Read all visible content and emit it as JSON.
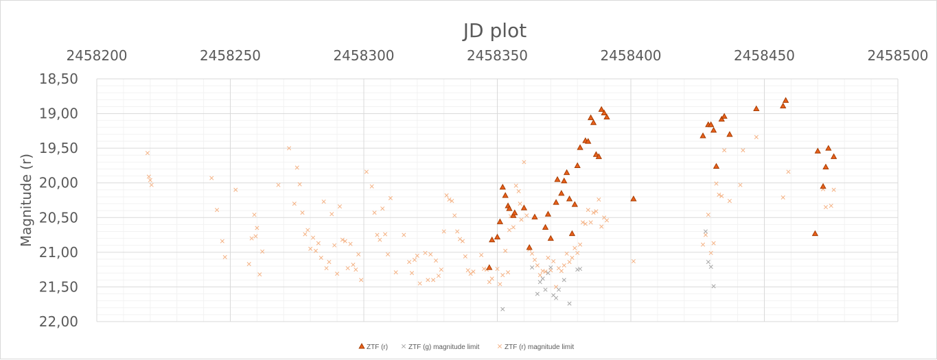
{
  "chart_data": {
    "type": "scatter",
    "title": "JD plot",
    "xlabel": "",
    "ylabel": "Magnitude (r)",
    "xlim": [
      2458200,
      2458500
    ],
    "x_ticks": [
      "2458200",
      "2458250",
      "2458300",
      "2458350",
      "2458400",
      "2458450",
      "2458500"
    ],
    "x_axis_position": "top",
    "ylim": [
      18.5,
      22.0
    ],
    "y_inverted": true,
    "y_ticks": [
      "18,50",
      "19,00",
      "19,50",
      "20,00",
      "20,50",
      "21,00",
      "21,50",
      "22,00"
    ],
    "grid": true,
    "legend_position": "bottom",
    "colors": {
      "ztf_r": "#e8601c",
      "ztf_r_edge": "#a63c00",
      "g_limit": "#a6a6a6",
      "r_limit": "#f4b183"
    },
    "series": [
      {
        "name": "ZTF (r)",
        "marker": "triangle",
        "points": [
          [
            2458347,
            21.22
          ],
          [
            2458348,
            20.82
          ],
          [
            2458350,
            20.78
          ],
          [
            2458351,
            20.56
          ],
          [
            2458352,
            20.06
          ],
          [
            2458353,
            20.18
          ],
          [
            2458354,
            20.33
          ],
          [
            2458354.5,
            20.37
          ],
          [
            2458356,
            20.47
          ],
          [
            2458356.5,
            20.43
          ],
          [
            2458360,
            20.36
          ],
          [
            2458362,
            20.93
          ],
          [
            2458364,
            20.49
          ],
          [
            2458368,
            20.64
          ],
          [
            2458369,
            20.45
          ],
          [
            2458370,
            20.8
          ],
          [
            2458372,
            20.28
          ],
          [
            2458372.5,
            19.95
          ],
          [
            2458374,
            20.15
          ],
          [
            2458375,
            19.97
          ],
          [
            2458376,
            19.85
          ],
          [
            2458377,
            20.23
          ],
          [
            2458378,
            20.73
          ],
          [
            2458379,
            20.31
          ],
          [
            2458380,
            19.75
          ],
          [
            2458381,
            19.49
          ],
          [
            2458383,
            19.39
          ],
          [
            2458384,
            19.4
          ],
          [
            2458385,
            19.06
          ],
          [
            2458386,
            19.13
          ],
          [
            2458387,
            19.59
          ],
          [
            2458388,
            19.62
          ],
          [
            2458389,
            18.94
          ],
          [
            2458390,
            18.99
          ],
          [
            2458391,
            19.05
          ],
          [
            2458401,
            20.23
          ],
          [
            2458427,
            19.32
          ],
          [
            2458429,
            19.16
          ],
          [
            2458430,
            19.16
          ],
          [
            2458431,
            19.24
          ],
          [
            2458432,
            19.76
          ],
          [
            2458434,
            19.08
          ],
          [
            2458435,
            19.04
          ],
          [
            2458437,
            19.3
          ],
          [
            2458447,
            18.93
          ],
          [
            2458457,
            18.89
          ],
          [
            2458458,
            18.81
          ],
          [
            2458469,
            20.73
          ],
          [
            2458470,
            19.54
          ],
          [
            2458472,
            20.05
          ],
          [
            2458473,
            19.77
          ],
          [
            2458474,
            19.5
          ],
          [
            2458476,
            19.62
          ]
        ]
      },
      {
        "name": "ZTF (g) magnitude limit",
        "marker": "x",
        "points": [
          [
            2458352,
            21.82
          ],
          [
            2458363,
            21.22
          ],
          [
            2458365,
            21.6
          ],
          [
            2458366,
            21.43
          ],
          [
            2458367,
            21.38
          ],
          [
            2458368,
            21.54
          ],
          [
            2458369,
            21.3
          ],
          [
            2458370,
            21.22
          ],
          [
            2458371,
            21.62
          ],
          [
            2458372,
            21.66
          ],
          [
            2458373,
            21.54
          ],
          [
            2458375,
            21.4
          ],
          [
            2458377,
            21.74
          ],
          [
            2458380,
            21.25
          ],
          [
            2458381,
            21.24
          ],
          [
            2458428,
            20.7
          ],
          [
            2458429,
            21.14
          ],
          [
            2458430,
            21.21
          ],
          [
            2458431,
            21.49
          ]
        ]
      },
      {
        "name": "ZTF (r) magnitude limit",
        "marker": "x",
        "points": [
          [
            2458219,
            19.57
          ],
          [
            2458219.5,
            19.91
          ],
          [
            2458220,
            19.96
          ],
          [
            2458220.5,
            20.03
          ],
          [
            2458243,
            19.93
          ],
          [
            2458245,
            20.39
          ],
          [
            2458247,
            20.84
          ],
          [
            2458248,
            21.07
          ],
          [
            2458252,
            20.1
          ],
          [
            2458257,
            21.17
          ],
          [
            2458258,
            20.8
          ],
          [
            2458259,
            20.46
          ],
          [
            2458259.5,
            20.77
          ],
          [
            2458260,
            20.65
          ],
          [
            2458261,
            21.32
          ],
          [
            2458262,
            20.99
          ],
          [
            2458268,
            20.03
          ],
          [
            2458272,
            19.5
          ],
          [
            2458274,
            20.3
          ],
          [
            2458275,
            19.78
          ],
          [
            2458276,
            20.02
          ],
          [
            2458277,
            20.43
          ],
          [
            2458278,
            20.74
          ],
          [
            2458279,
            20.68
          ],
          [
            2458280,
            20.95
          ],
          [
            2458281,
            20.79
          ],
          [
            2458282,
            20.98
          ],
          [
            2458283,
            20.87
          ],
          [
            2458284,
            21.08
          ],
          [
            2458285,
            20.27
          ],
          [
            2458286,
            21.23
          ],
          [
            2458287,
            21.14
          ],
          [
            2458288,
            20.45
          ],
          [
            2458289,
            20.9
          ],
          [
            2458290,
            21.31
          ],
          [
            2458291,
            20.34
          ],
          [
            2458292,
            20.82
          ],
          [
            2458293,
            20.84
          ],
          [
            2458294,
            21.23
          ],
          [
            2458295,
            20.88
          ],
          [
            2458296,
            21.18
          ],
          [
            2458297,
            21.25
          ],
          [
            2458298,
            21.03
          ],
          [
            2458299,
            21.4
          ],
          [
            2458301,
            19.84
          ],
          [
            2458303,
            20.05
          ],
          [
            2458304,
            20.43
          ],
          [
            2458305,
            20.75
          ],
          [
            2458306,
            20.82
          ],
          [
            2458307,
            20.37
          ],
          [
            2458308,
            20.74
          ],
          [
            2458309,
            21.03
          ],
          [
            2458310,
            20.22
          ],
          [
            2458312,
            21.29
          ],
          [
            2458315,
            20.75
          ],
          [
            2458317,
            21.14
          ],
          [
            2458318,
            21.3
          ],
          [
            2458319,
            21.11
          ],
          [
            2458320,
            21.05
          ],
          [
            2458321,
            21.45
          ],
          [
            2458323,
            21.01
          ],
          [
            2458324,
            21.4
          ],
          [
            2458325,
            21.03
          ],
          [
            2458326,
            21.4
          ],
          [
            2458327,
            21.12
          ],
          [
            2458328,
            21.34
          ],
          [
            2458329,
            21.25
          ],
          [
            2458330,
            20.7
          ],
          [
            2458331,
            20.18
          ],
          [
            2458332,
            20.24
          ],
          [
            2458333,
            20.26
          ],
          [
            2458334,
            20.47
          ],
          [
            2458335,
            20.7
          ],
          [
            2458336,
            20.81
          ],
          [
            2458337,
            20.84
          ],
          [
            2458338,
            21.06
          ],
          [
            2458339,
            21.26
          ],
          [
            2458340,
            21.31
          ],
          [
            2458341,
            21.28
          ],
          [
            2458344,
            21.04
          ],
          [
            2458345,
            21.24
          ],
          [
            2458346,
            21.25
          ],
          [
            2458347,
            21.43
          ],
          [
            2458348,
            21.38
          ],
          [
            2458350,
            21.24
          ],
          [
            2458351,
            21.46
          ],
          [
            2458352,
            21.33
          ],
          [
            2458353,
            20.98
          ],
          [
            2458354,
            21.29
          ],
          [
            2458354.5,
            20.68
          ],
          [
            2458355,
            20.48
          ],
          [
            2458356,
            20.64
          ],
          [
            2458357,
            20.04
          ],
          [
            2458358,
            20.12
          ],
          [
            2458358.5,
            20.3
          ],
          [
            2458359,
            20.53
          ],
          [
            2458360,
            19.7
          ],
          [
            2458361,
            20.47
          ],
          [
            2458362,
            20.96
          ],
          [
            2458363,
            21.02
          ],
          [
            2458364,
            21.11
          ],
          [
            2458365,
            21.19
          ],
          [
            2458366,
            21.33
          ],
          [
            2458367,
            21.27
          ],
          [
            2458368,
            21.28
          ],
          [
            2458369,
            21.08
          ],
          [
            2458370,
            21.26
          ],
          [
            2458371,
            21.13
          ],
          [
            2458372,
            21.5
          ],
          [
            2458373,
            21.23
          ],
          [
            2458374,
            21.27
          ],
          [
            2458375,
            21.19
          ],
          [
            2458376,
            21.02
          ],
          [
            2458377,
            21.14
          ],
          [
            2458378,
            21.08
          ],
          [
            2458379,
            20.94
          ],
          [
            2458380,
            21.01
          ],
          [
            2458381,
            20.89
          ],
          [
            2458382,
            20.57
          ],
          [
            2458383,
            20.59
          ],
          [
            2458384,
            20.39
          ],
          [
            2458385,
            20.57
          ],
          [
            2458386,
            20.43
          ],
          [
            2458387,
            20.41
          ],
          [
            2458388,
            20.24
          ],
          [
            2458389,
            20.63
          ],
          [
            2458390,
            20.5
          ],
          [
            2458391,
            20.54
          ],
          [
            2458401,
            21.13
          ],
          [
            2458427,
            20.89
          ],
          [
            2458428,
            20.75
          ],
          [
            2458429,
            20.46
          ],
          [
            2458430,
            21.01
          ],
          [
            2458431,
            20.87
          ],
          [
            2458432,
            20.01
          ],
          [
            2458433,
            20.17
          ],
          [
            2458434,
            20.19
          ],
          [
            2458435,
            19.53
          ],
          [
            2458437,
            20.26
          ],
          [
            2458441,
            20.03
          ],
          [
            2458442,
            19.53
          ],
          [
            2458447,
            19.34
          ],
          [
            2458457,
            20.21
          ],
          [
            2458459,
            19.84
          ],
          [
            2458472,
            20.09
          ],
          [
            2458473,
            20.35
          ],
          [
            2458475,
            20.33
          ],
          [
            2458476,
            20.1
          ]
        ]
      }
    ]
  }
}
